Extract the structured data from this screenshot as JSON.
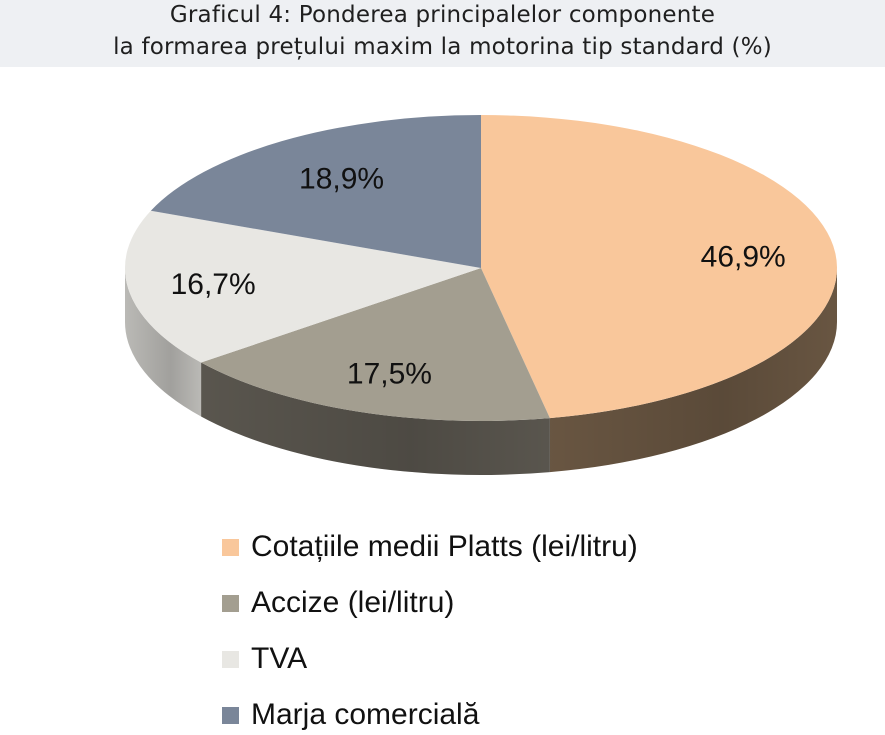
{
  "title_lines": [
    "Graficul 4: Ponderea principalelor componente",
    "la formarea prețului maxim la motorina tip standard (%)"
  ],
  "chart_data": {
    "type": "pie",
    "title": "Graficul 4: Ponderea principalelor componente la formarea prețului maxim la motorina tip standard (%)",
    "unit": "%",
    "slices": [
      {
        "label": "Cotațiile medii Platts (lei/litru)",
        "value": 46.9,
        "display": "46,9%",
        "color": "#f9c79b",
        "side_color": "#6e5a45"
      },
      {
        "label": "Accize (lei/litru)",
        "value": 17.5,
        "display": "17,5%",
        "color": "#a39e90",
        "side_color": "#5e5a52"
      },
      {
        "label": "TVA",
        "value": 16.7,
        "display": "16,7%",
        "color": "#e8e7e3",
        "side_color": "#c4c3bf"
      },
      {
        "label": "Marja comercială",
        "value": 18.9,
        "display": "18,9%",
        "color": "#7a8699",
        "side_color": "#4a5262"
      }
    ],
    "legend_placement": "bottom",
    "style": "3d-tilted-pie"
  }
}
